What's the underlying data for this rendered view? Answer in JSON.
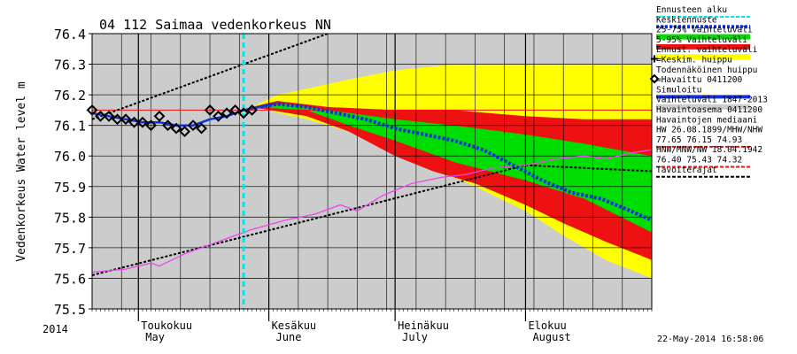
{
  "chart_data": {
    "type": "area",
    "title": "04 112 Saimaa vedenkorkeus NN",
    "ylabel": "Vedenkorkeus Water level m",
    "ylim": [
      75.5,
      76.4
    ],
    "yticks": [
      "75.5",
      "75.6",
      "75.7",
      "75.8",
      "75.9",
      "76.0",
      "76.1",
      "76.2",
      "76.3",
      "76.4"
    ],
    "x_range": [
      "2014-04-20",
      "2014-08-31"
    ],
    "year_label": "2014",
    "month_labels": [
      {
        "date": "2014-05-01",
        "fi": "Toukokuu",
        "en": "May"
      },
      {
        "date": "2014-06-01",
        "fi": "Kesäkuu",
        "en": "June"
      },
      {
        "date": "2014-07-01",
        "fi": "Heinäkuu",
        "en": "July"
      },
      {
        "date": "2014-08-01",
        "fi": "Elokuu",
        "en": "August"
      }
    ],
    "timestamp": "22-May-2014 16:58:06",
    "forecast_start": "2014-05-26",
    "grid": true,
    "legend_placement": "right",
    "legend": [
      {
        "label": "Ennusteen alku",
        "color": "#00e5ee",
        "style": "dashed"
      },
      {
        "label": "Keskiennuste",
        "color": "#1030e0",
        "style": "dotted"
      },
      {
        "label": "25-75% Vaihteluväli",
        "color": "#00dd00",
        "style": "band"
      },
      {
        "label": "5-95% Vaihteluväli",
        "color": "#ee1111",
        "style": "band"
      },
      {
        "label": "Ennust. vaihteluväli",
        "color": "#ffff00",
        "style": "band"
      },
      {
        "label": "=Keskim. huippu",
        "color": "#000000",
        "style": "plus"
      },
      {
        "label": "Todennäköinen huippu",
        "color": "#000000",
        "style": "none"
      },
      {
        "label": "=Havaittu 0411200",
        "color": "#000000",
        "style": "diamond"
      },
      {
        "label": "Simuloitu",
        "color": "#1030e0",
        "style": "solid"
      },
      {
        "label": "Vaihteluväli 1847-2013",
        "color": "#cccccc",
        "style": "band"
      },
      {
        "label": "Havaintoasema 0411200",
        "color": "#cccccc",
        "style": "none"
      },
      {
        "label": "Havaintojen mediaani",
        "color": "#000000",
        "style": "none"
      },
      {
        "label": "HW 26.08.1899/MHW/NHW",
        "color": "#ee1111",
        "style": "none"
      },
      {
        "label": "77.65 76.15 74.93",
        "color": "#ee1111",
        "style": "dashed"
      },
      {
        "label": "HNW/MNW/NW 18.04.1942",
        "color": "#ee1111",
        "style": "none"
      },
      {
        "label": "76.40 75.43 74.32",
        "color": "#ee1111",
        "style": "dashed"
      },
      {
        "label": "Tavoiterajat",
        "color": "#000000",
        "style": "dashed"
      }
    ],
    "series": {
      "observed": {
        "name": "Havaittu 0411200",
        "points": [
          [
            "2014-04-20",
            76.15
          ],
          [
            "2014-04-22",
            76.13
          ],
          [
            "2014-04-24",
            76.13
          ],
          [
            "2014-04-26",
            76.12
          ],
          [
            "2014-04-28",
            76.12
          ],
          [
            "2014-04-30",
            76.11
          ],
          [
            "2014-05-02",
            76.11
          ],
          [
            "2014-05-04",
            76.1
          ],
          [
            "2014-05-06",
            76.13
          ],
          [
            "2014-05-08",
            76.1
          ],
          [
            "2014-05-10",
            76.09
          ],
          [
            "2014-05-12",
            76.08
          ],
          [
            "2014-05-14",
            76.1
          ],
          [
            "2014-05-16",
            76.09
          ],
          [
            "2014-05-18",
            76.15
          ],
          [
            "2014-05-20",
            76.13
          ],
          [
            "2014-05-22",
            76.14
          ],
          [
            "2014-05-24",
            76.15
          ],
          [
            "2014-05-26",
            76.14
          ],
          [
            "2014-05-28",
            76.15
          ]
        ]
      },
      "simulated": {
        "name": "Simuloitu",
        "points": [
          [
            "2014-04-20",
            76.14
          ],
          [
            "2014-04-24",
            76.13
          ],
          [
            "2014-04-28",
            76.12
          ],
          [
            "2014-05-02",
            76.11
          ],
          [
            "2014-05-06",
            76.11
          ],
          [
            "2014-05-10",
            76.1
          ],
          [
            "2014-05-14",
            76.1
          ],
          [
            "2014-05-18",
            76.12
          ],
          [
            "2014-05-22",
            76.13
          ],
          [
            "2014-05-26",
            76.15
          ],
          [
            "2014-05-30",
            76.16
          ],
          [
            "2014-06-02",
            76.17
          ]
        ]
      },
      "mean_forecast": {
        "name": "Keskiennuste",
        "points": [
          [
            "2014-05-30",
            76.16
          ],
          [
            "2014-06-03",
            76.17
          ],
          [
            "2014-06-10",
            76.16
          ],
          [
            "2014-06-17",
            76.14
          ],
          [
            "2014-06-24",
            76.12
          ],
          [
            "2014-07-01",
            76.09
          ],
          [
            "2014-07-08",
            76.07
          ],
          [
            "2014-07-15",
            76.05
          ],
          [
            "2014-07-22",
            76.02
          ],
          [
            "2014-07-29",
            75.97
          ],
          [
            "2014-08-05",
            75.92
          ],
          [
            "2014-08-12",
            75.88
          ],
          [
            "2014-08-19",
            75.86
          ],
          [
            "2014-08-26",
            75.82
          ],
          [
            "2014-08-31",
            75.79
          ]
        ]
      },
      "median": {
        "name": "Havaintojen mediaani",
        "points": [
          [
            "2014-04-20",
            75.62
          ],
          [
            "2014-05-01",
            75.64
          ],
          [
            "2014-05-10",
            75.68
          ],
          [
            "2014-05-20",
            75.73
          ],
          [
            "2014-06-01",
            75.77
          ],
          [
            "2014-06-15",
            75.83
          ],
          [
            "2014-07-01",
            75.89
          ],
          [
            "2014-07-15",
            75.94
          ],
          [
            "2014-08-01",
            75.97
          ],
          [
            "2014-08-15",
            75.98
          ],
          [
            "2014-08-31",
            75.96
          ]
        ]
      },
      "sim_history": {
        "name": "Simuloitu",
        "points": [
          [
            "2014-04-20",
            75.62
          ],
          [
            "2014-04-28",
            75.63
          ],
          [
            "2014-05-04",
            75.65
          ],
          [
            "2014-05-06",
            75.64
          ],
          [
            "2014-05-12",
            75.68
          ],
          [
            "2014-05-20",
            75.72
          ],
          [
            "2014-05-28",
            75.76
          ],
          [
            "2014-06-05",
            75.79
          ],
          [
            "2014-06-12",
            75.81
          ],
          [
            "2014-06-18",
            75.84
          ],
          [
            "2014-06-22",
            75.82
          ],
          [
            "2014-06-28",
            75.87
          ],
          [
            "2014-07-05",
            75.91
          ],
          [
            "2014-07-12",
            75.93
          ],
          [
            "2014-07-18",
            75.94
          ],
          [
            "2014-07-24",
            75.96
          ],
          [
            "2014-08-01",
            75.97
          ],
          [
            "2014-08-08",
            75.99
          ],
          [
            "2014-08-15",
            76.0
          ],
          [
            "2014-08-20",
            75.99
          ],
          [
            "2014-08-26",
            76.01
          ],
          [
            "2014-08-31",
            76.02
          ]
        ]
      },
      "target_upper": {
        "name": "Tavoiterajat",
        "points": [
          [
            "2014-04-20",
            76.15
          ],
          [
            "2014-05-20",
            76.15
          ],
          [
            "2014-06-01",
            76.15
          ],
          [
            "2014-08-31",
            76.15
          ]
        ]
      },
      "trend_upper": {
        "name": "Tavoiterajat",
        "points": [
          [
            "2014-04-20",
            76.12
          ],
          [
            "2014-06-15",
            76.4
          ]
        ]
      },
      "trend_lower": {
        "name": "Tavoiterajat",
        "points": [
          [
            "2014-04-20",
            75.61
          ],
          [
            "2014-08-01",
            75.97
          ],
          [
            "2014-08-31",
            75.95
          ]
        ]
      }
    },
    "bands": [
      {
        "name": "Ennust. vaihteluväli",
        "color": "#ffff00",
        "upper": [
          [
            "2014-05-28",
            76.16
          ],
          [
            "2014-06-03",
            76.2
          ],
          [
            "2014-06-10",
            76.22
          ],
          [
            "2014-06-20",
            76.25
          ],
          [
            "2014-07-01",
            76.28
          ],
          [
            "2014-07-15",
            76.3
          ],
          [
            "2014-08-01",
            76.3
          ],
          [
            "2014-08-31",
            76.3
          ]
        ],
        "lower": [
          [
            "2014-05-28",
            76.16
          ],
          [
            "2014-06-10",
            76.12
          ],
          [
            "2014-06-20",
            76.08
          ],
          [
            "2014-07-01",
            76.02
          ],
          [
            "2014-07-10",
            75.96
          ],
          [
            "2014-07-20",
            75.9
          ],
          [
            "2014-08-01",
            75.82
          ],
          [
            "2014-08-10",
            75.74
          ],
          [
            "2014-08-20",
            75.66
          ],
          [
            "2014-08-31",
            75.6
          ]
        ]
      },
      {
        "name": "5-95% Vaihteluväli",
        "color": "#ee1111",
        "upper": [
          [
            "2014-05-28",
            76.16
          ],
          [
            "2014-06-03",
            76.18
          ],
          [
            "2014-06-15",
            76.16
          ],
          [
            "2014-07-01",
            76.15
          ],
          [
            "2014-07-15",
            76.15
          ],
          [
            "2014-08-01",
            76.13
          ],
          [
            "2014-08-15",
            76.12
          ],
          [
            "2014-08-31",
            76.12
          ]
        ],
        "lower": [
          [
            "2014-05-28",
            76.16
          ],
          [
            "2014-06-10",
            76.13
          ],
          [
            "2014-06-20",
            76.08
          ],
          [
            "2014-07-01",
            76.0
          ],
          [
            "2014-07-10",
            75.95
          ],
          [
            "2014-07-20",
            75.91
          ],
          [
            "2014-08-01",
            75.84
          ],
          [
            "2014-08-10",
            75.78
          ],
          [
            "2014-08-20",
            75.72
          ],
          [
            "2014-08-31",
            75.66
          ]
        ]
      },
      {
        "name": "25-75% Vaihteluväli",
        "color": "#00dd00",
        "upper": [
          [
            "2014-05-28",
            76.16
          ],
          [
            "2014-06-05",
            76.17
          ],
          [
            "2014-06-15",
            76.15
          ],
          [
            "2014-07-01",
            76.12
          ],
          [
            "2014-07-15",
            76.1
          ],
          [
            "2014-08-01",
            76.07
          ],
          [
            "2014-08-15",
            76.04
          ],
          [
            "2014-08-31",
            76.0
          ]
        ],
        "lower": [
          [
            "2014-05-28",
            76.16
          ],
          [
            "2014-06-10",
            76.15
          ],
          [
            "2014-06-20",
            76.1
          ],
          [
            "2014-07-01",
            76.05
          ],
          [
            "2014-07-15",
            75.98
          ],
          [
            "2014-08-01",
            75.92
          ],
          [
            "2014-08-15",
            75.86
          ],
          [
            "2014-08-31",
            75.75
          ]
        ]
      }
    ]
  }
}
